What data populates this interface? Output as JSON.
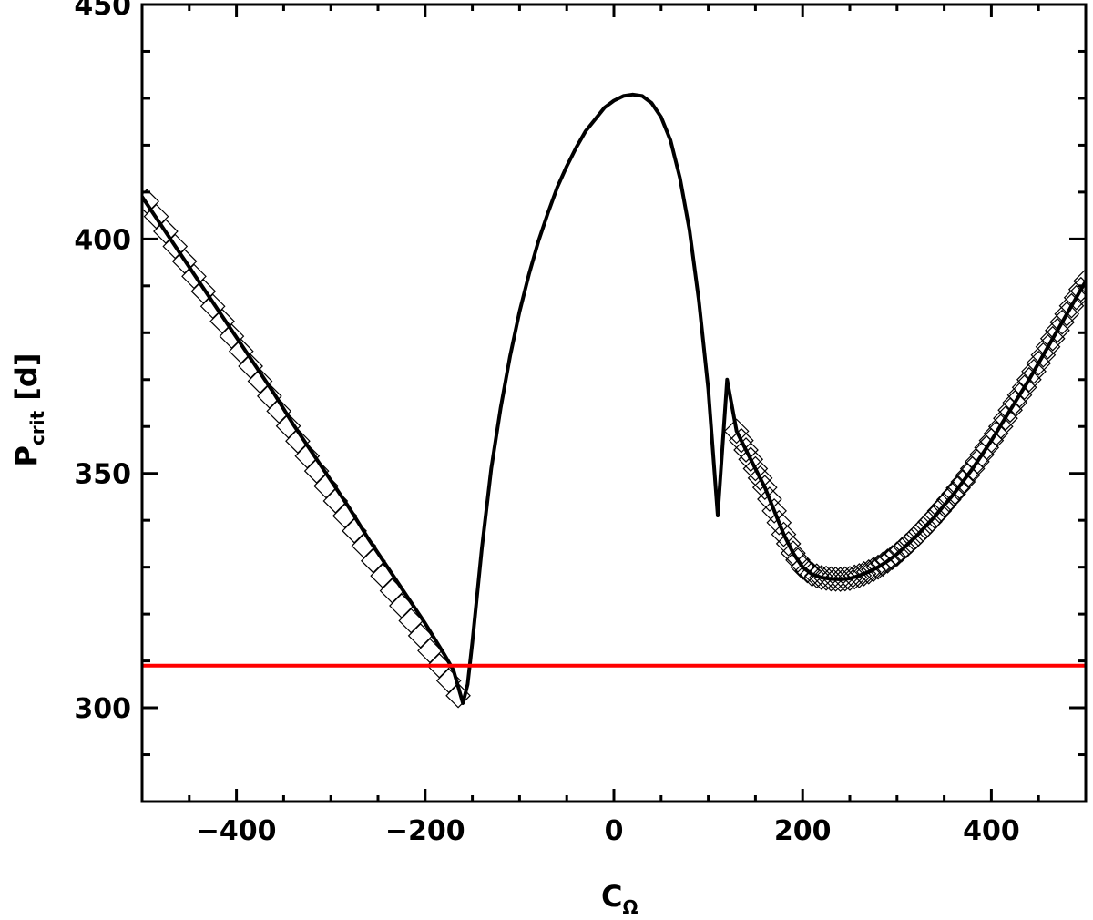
{
  "chart_data": {
    "type": "line",
    "xlabel": {
      "main": "C",
      "sub": "Ω"
    },
    "ylabel": {
      "main": "P",
      "sub": "crit",
      "unit": "[d]"
    },
    "xlim": [
      -500,
      500
    ],
    "ylim": [
      280,
      450
    ],
    "xticks": [
      -400,
      -200,
      0,
      200,
      400
    ],
    "xtick_labels": [
      "−400",
      "−200",
      "0",
      "200",
      "400"
    ],
    "yticks": [
      300,
      350,
      400,
      450
    ],
    "ytick_labels": [
      "300",
      "350",
      "400",
      "450"
    ],
    "grid": false,
    "series": [
      {
        "style": "solid-black",
        "x": [
          -500,
          -480,
          -460,
          -440,
          -420,
          -400,
          -380,
          -360,
          -340,
          -320,
          -300,
          -280,
          -260,
          -240,
          -220,
          -200,
          -180,
          -170,
          -160,
          -155,
          -150,
          -140,
          -130,
          -120,
          -110,
          -100,
          -90,
          -80,
          -70,
          -60,
          -50,
          -40,
          -30,
          -20,
          -10,
          0,
          10,
          20,
          30,
          40,
          50,
          60,
          70,
          80,
          90,
          100,
          110,
          120,
          130,
          140,
          150,
          160,
          170,
          180,
          190,
          200,
          210,
          220,
          230,
          240,
          250,
          260,
          270,
          280,
          290,
          300,
          320,
          340,
          360,
          380,
          400,
          420,
          440,
          460,
          480,
          500
        ],
        "y": [
          409,
          403,
          397,
          391,
          385,
          379,
          373,
          367,
          360.5,
          354.5,
          348.5,
          342.5,
          336,
          330,
          324,
          318,
          311.5,
          308,
          301,
          305,
          314,
          334,
          351,
          364,
          375,
          384.5,
          392.5,
          399.5,
          405.5,
          411,
          415.5,
          419.5,
          423,
          425.5,
          428,
          429.5,
          430.5,
          430.8,
          430.5,
          429,
          426,
          421,
          413,
          402,
          387,
          368,
          341,
          370,
          359,
          355,
          351,
          347,
          342,
          337,
          333,
          330,
          328.5,
          327.8,
          327.5,
          327.4,
          327.6,
          328.2,
          329,
          330,
          331.3,
          332.8,
          336.5,
          340.8,
          345.6,
          351,
          357,
          363.5,
          370,
          377,
          384,
          391
        ]
      },
      {
        "style": "diamond-markers",
        "segments": [
          {
            "x_start": -495,
            "x_end": -160,
            "y_start": 408,
            "y_end": 301,
            "step": 10
          },
          {
            "curve_x": [
              130,
              140,
              150,
              160,
              170,
              180,
              190,
              200,
              210,
              220,
              230,
              240,
              250,
              260,
              270,
              280,
              290,
              300,
              310,
              320,
              330,
              340,
              350,
              360,
              370,
              380,
              390,
              400,
              410,
              420,
              430,
              440,
              450,
              460,
              470,
              480,
              490,
              500
            ],
            "curve_y": [
              359,
              355,
              351,
              347,
              342,
              337,
              333,
              330,
              328.5,
              327.8,
              327.5,
              327.4,
              327.6,
              328.2,
              329,
              330,
              331.3,
              332.8,
              334.6,
              336.5,
              338.6,
              340.8,
              343.2,
              345.6,
              348.2,
              351,
              354,
              357,
              360,
              363.5,
              366.7,
              370,
              373.5,
              377,
              380.5,
              384,
              387.5,
              391
            ]
          }
        ]
      },
      {
        "style": "horizontal-red",
        "y_value": 309
      }
    ],
    "colors": {
      "curve": "#000000",
      "threshold": "#ff0000",
      "marker": "#000000"
    }
  }
}
